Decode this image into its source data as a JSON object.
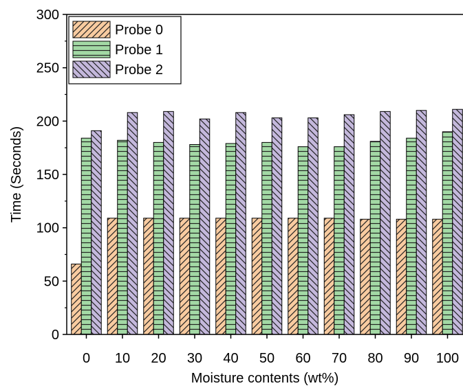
{
  "chart_data": {
    "type": "bar",
    "title": "",
    "xlabel": "Moisture contents (wt%)",
    "ylabel": "Time (Seconds)",
    "ylim": [
      0,
      300
    ],
    "yticks": [
      0,
      50,
      100,
      150,
      200,
      250,
      300
    ],
    "categories": [
      "0",
      "10",
      "20",
      "30",
      "40",
      "50",
      "60",
      "70",
      "80",
      "90",
      "100"
    ],
    "series": [
      {
        "name": "Probe 0",
        "color": "#f8cba0",
        "pattern": "hatch-forward",
        "values": [
          66,
          109,
          109,
          109,
          109,
          109,
          109,
          109,
          108,
          108,
          108
        ]
      },
      {
        "name": "Probe 1",
        "color": "#a3d9a5",
        "pattern": "hatch-horizontal",
        "values": [
          184,
          182,
          180,
          178,
          179,
          180,
          176,
          176,
          181,
          184,
          190
        ]
      },
      {
        "name": "Probe 2",
        "color": "#c4b8dc",
        "pattern": "hatch-back",
        "values": [
          191,
          208,
          209,
          202,
          208,
          203,
          203,
          206,
          209,
          210,
          211
        ]
      }
    ],
    "legend_position": "top-left",
    "grid": false
  }
}
